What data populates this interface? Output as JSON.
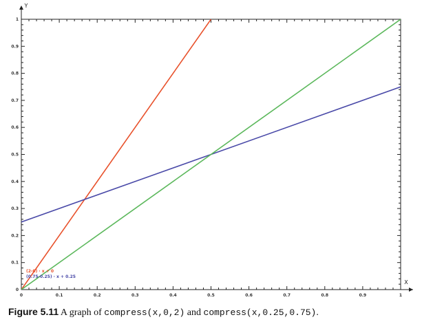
{
  "chart_data": {
    "type": "line",
    "xlabel": "X",
    "ylabel": "Y",
    "xlim": [
      0,
      1
    ],
    "ylim": [
      0,
      1
    ],
    "x_ticks": [
      "0",
      "0.1",
      "0.2",
      "0.3",
      "0.4",
      "0.5",
      "0.6",
      "0.7",
      "0.8",
      "0.9",
      "1"
    ],
    "y_ticks": [
      "0",
      "0.1",
      "0.2",
      "0.3",
      "0.4",
      "0.5",
      "0.6",
      "0.7",
      "0.8",
      "0.9",
      "1"
    ],
    "grid": false,
    "legend_position": "bottom-left",
    "series": [
      {
        "name": "(2-0) · x + 0",
        "color": "#e8512b",
        "x": [
          0,
          0.5
        ],
        "y": [
          0,
          1
        ]
      },
      {
        "name": "(0.75-0.25) · x + 0.25",
        "color": "#4a4aa8",
        "x": [
          0,
          1
        ],
        "y": [
          0.25,
          0.75
        ]
      },
      {
        "color": "#5cb85c",
        "x": [
          0,
          1
        ],
        "y": [
          0,
          1
        ]
      }
    ]
  },
  "caption": {
    "label": "Figure 5.11",
    "text_1": " A graph of ",
    "code_1": "compress(x,0,2)",
    "text_2": " and ",
    "code_2": "compress(x,0.25,0.75)",
    "text_3": "."
  }
}
